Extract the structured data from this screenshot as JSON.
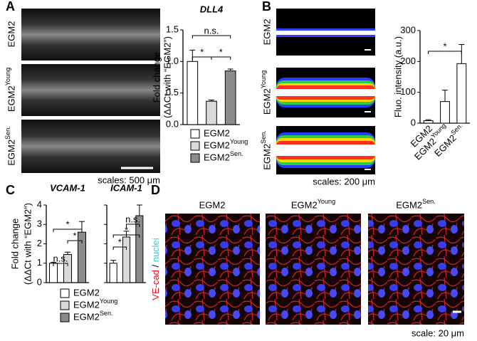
{
  "chart_data": [
    {
      "type": "bar",
      "title": "DLL4",
      "y_label": "Fold change",
      "y_label_2": "(ΔΔCt with “EGM2”)",
      "categories": [
        "EGM2",
        "EGM2Young",
        "EGM2Sen."
      ],
      "colors": [
        "#ffffff",
        "#d9d9d9",
        "#8c8c8c"
      ],
      "values": [
        1.0,
        0.37,
        0.85
      ],
      "errors": [
        0.18,
        0.02,
        0.03
      ],
      "ylim": [
        0,
        1.5
      ],
      "yticks": [
        {
          "value": 0,
          "label": "0.0"
        },
        {
          "value": 0.5,
          "label": "0.5"
        },
        {
          "value": 1,
          "label": "1.0"
        },
        {
          "value": 1.5,
          "label": "1.5"
        }
      ],
      "annotations": [
        "n.s.",
        "*",
        "*"
      ]
    },
    {
      "type": "bar",
      "y_label": "Fluo. intensity (a.u.)",
      "categories": [
        "EGM2",
        "EGM2Young",
        "EGM2Sen."
      ],
      "colors": [
        "#ffffff",
        "#ffffff",
        "#ffffff"
      ],
      "values": [
        8,
        70,
        193
      ],
      "errors": [
        3,
        37,
        62
      ],
      "ylim": [
        0,
        300
      ],
      "yticks": [
        0,
        100,
        200,
        300
      ],
      "annotations": [
        "*"
      ]
    },
    {
      "type": "bar",
      "title": "VCAM-1",
      "y_label": "Fold change",
      "y_label_2": "(ΔΔCt with “EGM2”)",
      "categories": [
        "EGM2",
        "EGM2Young",
        "EGM2Sen."
      ],
      "colors": [
        "#ffffff",
        "#d9d9d9",
        "#8c8c8c"
      ],
      "values": [
        1.0,
        1.45,
        2.6
      ],
      "errors": [
        0.05,
        0.12,
        0.55
      ],
      "ylim": [
        0,
        4
      ],
      "yticks": [
        0,
        1,
        2,
        3,
        4
      ],
      "annotations": [
        "n.s.",
        "*",
        "*"
      ]
    },
    {
      "type": "bar",
      "title": "ICAM-1",
      "categories": [
        "EGM2",
        "EGM2Young",
        "EGM2Sen."
      ],
      "colors": [
        "#ffffff",
        "#d9d9d9",
        "#8c8c8c"
      ],
      "values": [
        1.0,
        2.35,
        3.45
      ],
      "errors": [
        0.15,
        0.3,
        0.55
      ],
      "ylim": [
        0,
        4
      ],
      "yticks": [
        0,
        1,
        2,
        3,
        4
      ],
      "annotations": [
        "*",
        "*",
        "n.s."
      ]
    }
  ],
  "panels": {
    "a": {
      "label": "A",
      "rows": [
        "EGM2",
        "EGM2Young",
        "EGM2Sen."
      ],
      "scale": "scales: 500 μm"
    },
    "b": {
      "label": "B",
      "rows": [
        "EGM2",
        "EGM2Young",
        "EGM2Sen."
      ],
      "scale": "scales: 200 μm"
    },
    "c": {
      "label": "C"
    },
    "d": {
      "label": "D",
      "columns": [
        "EGM2",
        "EGM2Young",
        "EGM2Sen."
      ],
      "stain": "VE-cad",
      "separator": "/",
      "stain_2": "nuclei",
      "scale": "scale: 20 μm"
    }
  }
}
